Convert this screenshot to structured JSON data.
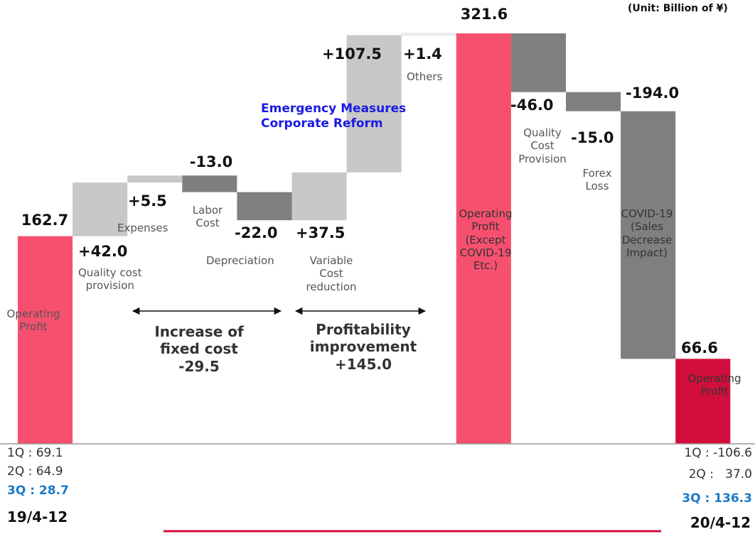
{
  "chart_data": {
    "type": "waterfall",
    "unit_note": "(Unit: Billion of ¥)",
    "categories": [
      "Operating\nProfit",
      "Quality cost\nprovision",
      "Expenses",
      "Labor\nCost",
      "Depreciation",
      "Variable\nCost\nreduction",
      null,
      "Others",
      "Operating\nProfit\n(Except\nCOVID-19\nEtc.)",
      "Quality\nCost\nProvision",
      "Forex\nLoss",
      "COVID-19\n(Sales\nDecrease\nImpact)",
      "Operating\nProfit"
    ],
    "values": [
      162.7,
      42.0,
      5.5,
      -13.0,
      -22.0,
      37.5,
      107.5,
      1.4,
      321.6,
      -46.0,
      -15.0,
      -194.0,
      66.6
    ],
    "value_labels": [
      "162.7",
      "+42.0",
      "+5.5",
      "-13.0",
      "-22.0",
      "+37.5",
      "+107.5",
      "+1.4",
      "321.6",
      "-46.0",
      "-15.0",
      "-194.0",
      "66.6"
    ],
    "is_total": [
      true,
      false,
      false,
      false,
      false,
      false,
      false,
      false,
      true,
      false,
      false,
      false,
      true
    ],
    "colors": [
      "#f7506f",
      "#c8c8c8",
      "#c8c8c8",
      "#7f7f7f",
      "#7f7f7f",
      "#c8c8c8",
      "#c8c8c8",
      "#f4f4f4",
      "#f7506f",
      "#7f7f7f",
      "#7f7f7f",
      "#7f7f7f",
      "#d20f3c"
    ],
    "annotations": [
      "Emergency Measures\nCorporate Reform",
      "Increase of\nfixed cost\n-29.5",
      "Profitability\nimprovement\n+145.0"
    ]
  },
  "notes": {
    "left": {
      "lines": [
        "1Q : 69.1",
        "2Q : 64.9",
        "3Q : 28.7"
      ],
      "period": "19/4-12"
    },
    "right": {
      "lines": [
        "1Q : -106.6",
        "2Q :   37.0",
        "3Q : 136.3"
      ],
      "period": "20/4-12"
    }
  }
}
